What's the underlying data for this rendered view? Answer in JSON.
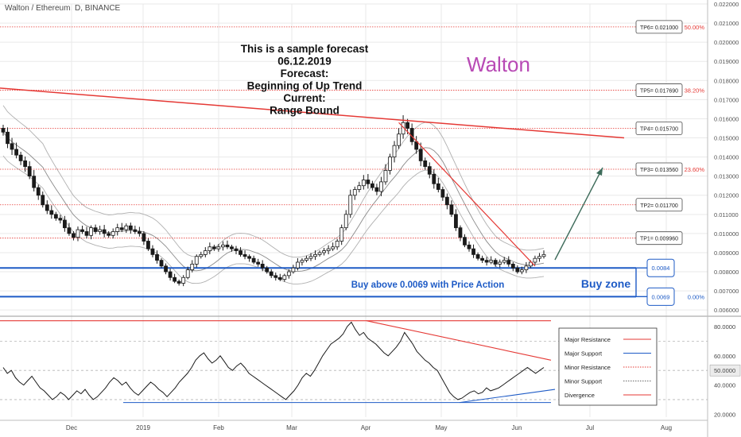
{
  "header": {
    "symbol_line": "Walton / Ethereum, D, BINANCE"
  },
  "annotation": {
    "lines": [
      "This is a sample forecast",
      "06.12.2019",
      "Forecast:",
      "Beginning of Up Trend",
      "Current:",
      "Range Bound"
    ],
    "brand": "Walton",
    "buy_text": "Buy above 0.0069 with Price Action",
    "buy_zone": "Buy zone"
  },
  "colors": {
    "up": "#ffffff",
    "down": "#1a1a1a",
    "trend": "#e53935",
    "blue": "#1e5bc6",
    "brand": "#b84ab5",
    "bb": "#b0b0b0",
    "grid": "#e9e9e9"
  },
  "chart_data": [
    {
      "type": "candlestick",
      "title": "Walton / Ethereum, D, BINANCE",
      "ylim": [
        0.006,
        0.0222
      ],
      "x_ticks": [
        "Dec",
        "2019",
        "Feb",
        "Mar",
        "Apr",
        "May",
        "Jun",
        "Jul",
        "Aug"
      ],
      "y_ticks": [
        "0.022000",
        "0.021000",
        "0.020000",
        "0.019000",
        "0.018000",
        "0.017000",
        "0.016000",
        "0.015000",
        "0.014000",
        "0.013000",
        "0.012000",
        "0.011000",
        "0.010000",
        "0.009000",
        "0.008000",
        "0.007000",
        "0.006000"
      ],
      "targets": [
        {
          "label": "TP6= 0.021000",
          "value": 0.021
        },
        {
          "label": "TP5= 0.017690",
          "value": 0.01769
        },
        {
          "label": "TP4= 0.015700",
          "value": 0.0157
        },
        {
          "label": "TP3= 0.013560",
          "value": 0.01356
        },
        {
          "label": "TP2= 0.011700",
          "value": 0.0117
        },
        {
          "label": "TP1= 0.009960",
          "value": 0.00996
        }
      ],
      "fib_levels": [
        {
          "label": "50.00%",
          "value": 0.021
        },
        {
          "label": "38.20%",
          "value": 0.01769
        },
        {
          "label": "23.60%",
          "value": 0.01356
        },
        {
          "label": "0.00%",
          "value": 0.0069
        }
      ],
      "zones": [
        {
          "label": "0.0084",
          "value": 0.0084
        },
        {
          "label": "0.0069",
          "value": 0.0069
        }
      ],
      "closes": [
        0.0155,
        0.0149,
        0.0146,
        0.0143,
        0.014,
        0.0137,
        0.0132,
        0.0126,
        0.0122,
        0.0117,
        0.0114,
        0.0112,
        0.011,
        0.0109,
        0.0105,
        0.0102,
        0.01,
        0.0104,
        0.0103,
        0.0101,
        0.0105,
        0.0103,
        0.0104,
        0.0102,
        0.0101,
        0.0103,
        0.0105,
        0.0104,
        0.0106,
        0.0104,
        0.0103,
        0.0102,
        0.0098,
        0.0094,
        0.0091,
        0.0088,
        0.0085,
        0.0082,
        0.0079,
        0.0077,
        0.0076,
        0.0079,
        0.0083,
        0.0086,
        0.009,
        0.0091,
        0.0093,
        0.0095,
        0.0094,
        0.0095,
        0.0096,
        0.0095,
        0.0094,
        0.0093,
        0.0091,
        0.009,
        0.0089,
        0.0087,
        0.0086,
        0.0084,
        0.0082,
        0.008,
        0.0079,
        0.0078,
        0.008,
        0.0082,
        0.0084,
        0.0087,
        0.0088,
        0.0089,
        0.009,
        0.0091,
        0.0092,
        0.0093,
        0.0094,
        0.0095,
        0.0098,
        0.0105,
        0.0112,
        0.0122,
        0.0125,
        0.0127,
        0.013,
        0.0128,
        0.0126,
        0.0124,
        0.0129,
        0.0135,
        0.0142,
        0.0148,
        0.0154,
        0.016,
        0.0157,
        0.015,
        0.0146,
        0.014,
        0.0137,
        0.0133,
        0.0128,
        0.0125,
        0.0121,
        0.0117,
        0.0112,
        0.0105,
        0.01,
        0.0096,
        0.0094,
        0.0091,
        0.0089,
        0.0088,
        0.0087,
        0.0088,
        0.0086,
        0.0087,
        0.0088,
        0.0086,
        0.0084,
        0.0082,
        0.0083,
        0.0085,
        0.0087,
        0.0089,
        0.009,
        0.0091
      ]
    },
    {
      "type": "line",
      "series": [
        {
          "name": "",
          "values": [
            52,
            48,
            50,
            45,
            42,
            40,
            43,
            46,
            42,
            38,
            36,
            33,
            30,
            32,
            35,
            33,
            30,
            33,
            36,
            34,
            37,
            33,
            30,
            32,
            35,
            38,
            42,
            45,
            43,
            40,
            42,
            38,
            35,
            33,
            36,
            39,
            42,
            40,
            37,
            35,
            32,
            35,
            38,
            42,
            45,
            48,
            52,
            57,
            60,
            62,
            58,
            55,
            57,
            60,
            56,
            52,
            50,
            53,
            55,
            52,
            48,
            46,
            44,
            42,
            40,
            38,
            36,
            34,
            32,
            30,
            33,
            36,
            40,
            45,
            48,
            46,
            50,
            55,
            60,
            64,
            68,
            70,
            72,
            75,
            80,
            83,
            78,
            74,
            76,
            72,
            70,
            68,
            65,
            62,
            60,
            63,
            66,
            70,
            76,
            72,
            68,
            63,
            60,
            57,
            55,
            52,
            50,
            45,
            40,
            35,
            32,
            30,
            31,
            33,
            35,
            36,
            34,
            35,
            38,
            36,
            37,
            38,
            40,
            42,
            44,
            46,
            48,
            50,
            52,
            50,
            48,
            50,
            52
          ]
        }
      ],
      "ylim": [
        18,
        86
      ],
      "y_ticks": [
        "80.0000",
        "60.0000",
        "50.0000",
        "40.0000",
        "20.0000"
      ],
      "legend": [
        "Major Resistance",
        "Major Support",
        "Minor Resistance",
        "Minor Support",
        "Divergence"
      ]
    }
  ]
}
